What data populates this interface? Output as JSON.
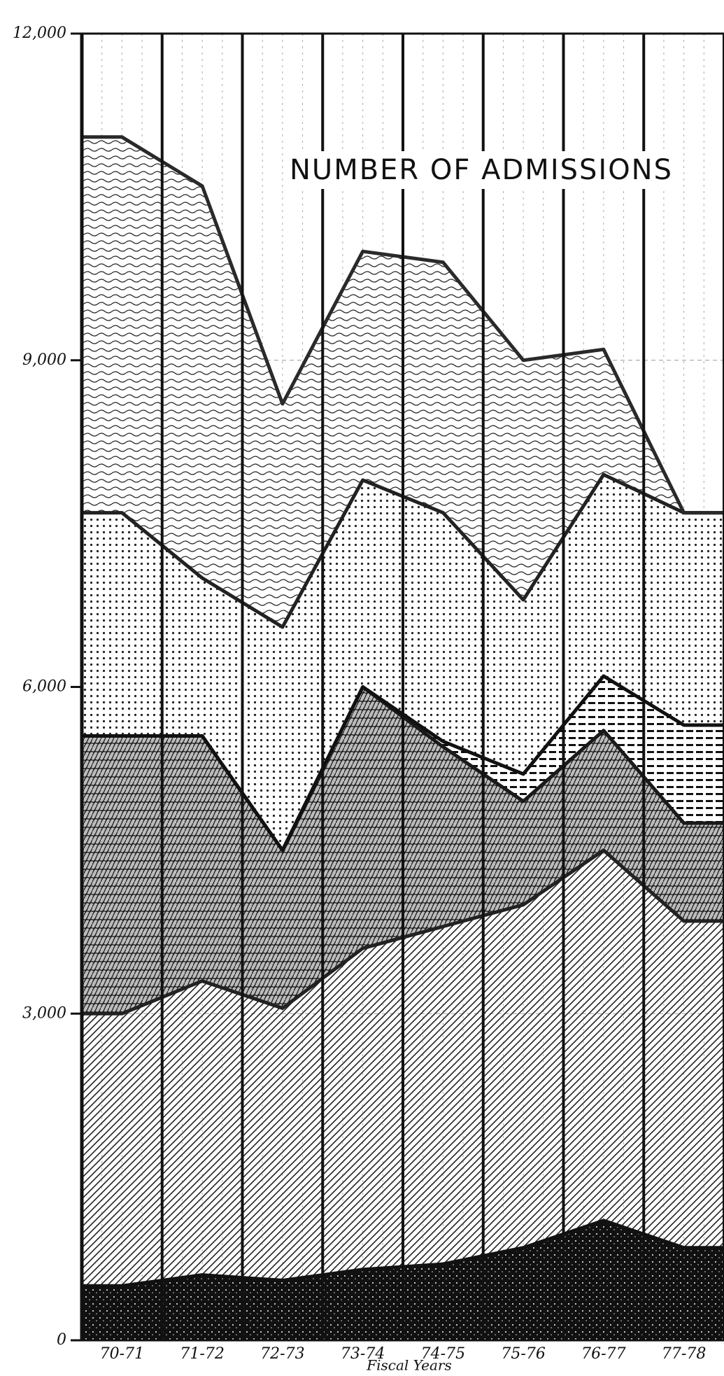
{
  "chart_data": {
    "type": "stacked-area",
    "title": "NUMBER OF ADMISSIONS",
    "x_label": "Fiscal Years",
    "categories": [
      "70-71",
      "71-72",
      "72-73",
      "73-74",
      "74-75",
      "75-76",
      "76-77",
      "77-78"
    ],
    "series": [
      {
        "color": "#111111",
        "values": [
          500,
          600,
          550,
          650,
          700,
          850,
          1100,
          850
        ]
      },
      {
        "color": "#222222",
        "values": [
          2500,
          2700,
          2500,
          2950,
          3100,
          3150,
          3400,
          3000
        ]
      },
      {
        "color": "#1a1a1a",
        "values": [
          2550,
          2250,
          1450,
          2400,
          1650,
          950,
          1100,
          900
        ]
      },
      {
        "color": "#111111",
        "values": [
          0,
          0,
          0,
          0,
          50,
          250,
          500,
          900
        ]
      },
      {
        "color": "#222222",
        "values": [
          2050,
          1450,
          2050,
          1900,
          2100,
          1600,
          1850,
          1950
        ]
      },
      {
        "color": "#2a2a2a",
        "values": [
          3450,
          3600,
          2050,
          2100,
          2300,
          2200,
          1150,
          0
        ]
      }
    ],
    "ylim": [
      0,
      12000
    ],
    "yticks": [
      {
        "value": 0,
        "label": "0"
      },
      {
        "value": 3000,
        "label": "3,000"
      },
      {
        "value": 6000,
        "label": "6,000"
      },
      {
        "value": 9000,
        "label": "9,000"
      },
      {
        "value": 12000,
        "label": "12,000"
      }
    ],
    "grid": true
  }
}
